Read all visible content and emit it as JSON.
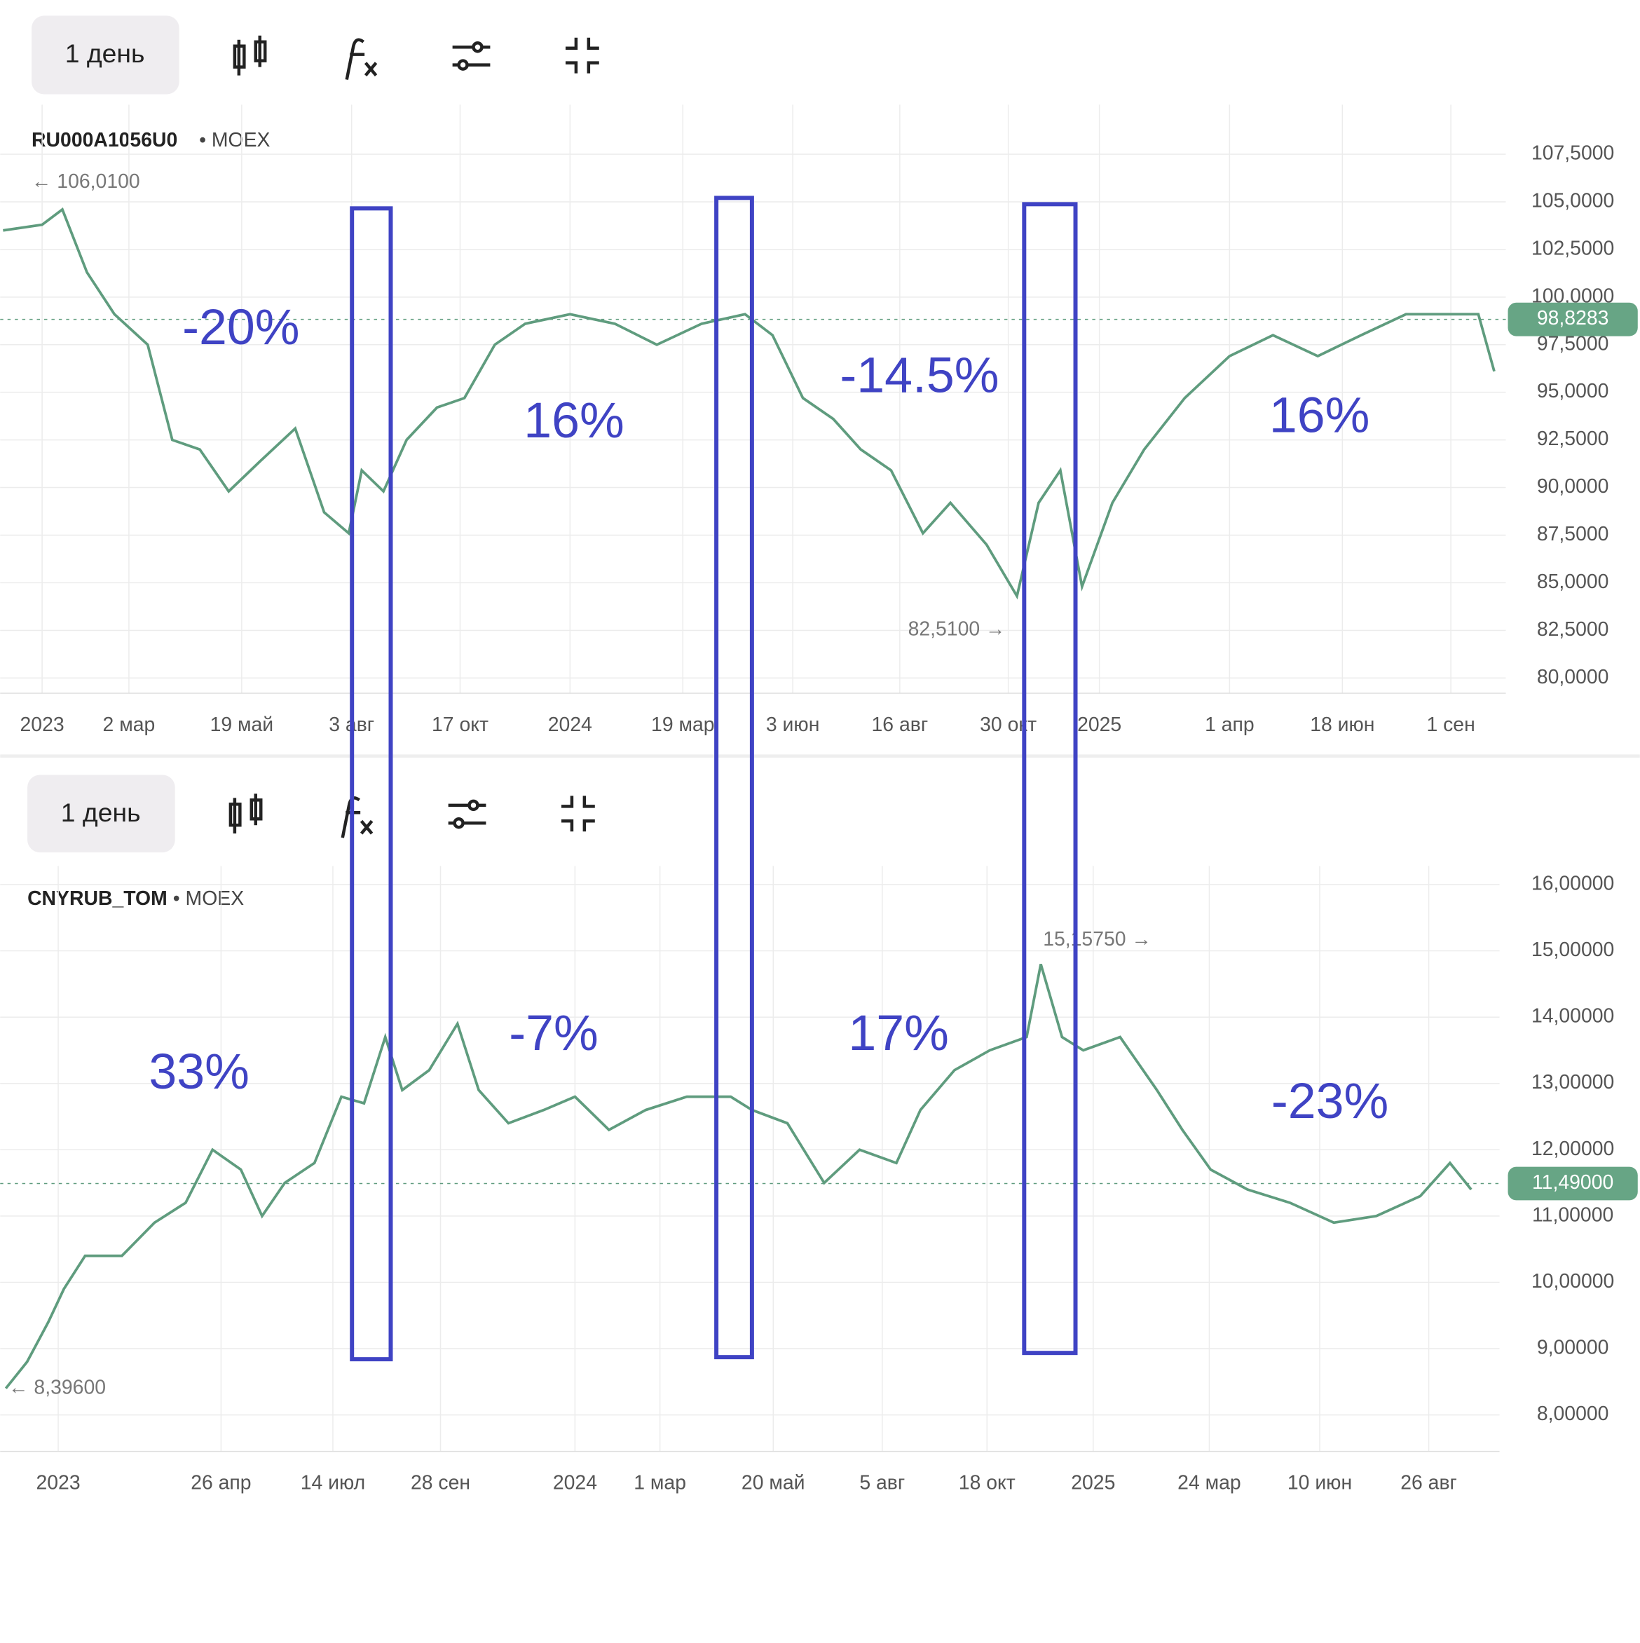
{
  "annotations": [
    "-20%",
    "16%",
    "-14.5%",
    "16%",
    "33%",
    "-7%",
    "17%",
    "-23%"
  ],
  "chart_data": [
    {
      "type": "line",
      "interval": "1 день",
      "ticker": "RU000A1056U0",
      "exchange": "• MOEX",
      "color": "#5f9c7e",
      "x": [
        "2022-12-05",
        "2023-01-01",
        "2023-01-15",
        "2023-02-01",
        "2023-02-20",
        "2023-03-15",
        "2023-04-01",
        "2023-04-20",
        "2023-05-10",
        "2023-06-01",
        "2023-06-25",
        "2023-07-15",
        "2023-08-01",
        "2023-08-10",
        "2023-08-25",
        "2023-09-10",
        "2023-10-01",
        "2023-10-20",
        "2023-11-10",
        "2023-12-01",
        "2024-01-01",
        "2024-02-01",
        "2024-03-01",
        "2024-04-01",
        "2024-05-01",
        "2024-05-20",
        "2024-06-10",
        "2024-07-01",
        "2024-07-20",
        "2024-08-10",
        "2024-09-01",
        "2024-09-20",
        "2024-10-15",
        "2024-11-05",
        "2024-11-20",
        "2024-12-05",
        "2024-12-20",
        "2025-01-10",
        "2025-02-01",
        "2025-03-01",
        "2025-04-01",
        "2025-05-01",
        "2025-06-01",
        "2025-07-01",
        "2025-08-01",
        "2025-09-01",
        "2025-09-20",
        "2025-10-01"
      ],
      "values": [
        103.5,
        103.8,
        104.6,
        101.3,
        99.1,
        97.5,
        92.5,
        92,
        89.8,
        91.4,
        93.1,
        88.7,
        87.6,
        90.9,
        89.8,
        92.5,
        94.2,
        94.7,
        97.5,
        98.6,
        99.1,
        98.6,
        97.5,
        98.6,
        99.1,
        98,
        94.7,
        93.6,
        92,
        90.9,
        87.6,
        89.2,
        87,
        84.3,
        89.2,
        90.9,
        84.8,
        89.2,
        92,
        94.7,
        96.9,
        98,
        96.9,
        98,
        99.1,
        99.1,
        99.1,
        96.1
      ],
      "xlim": [
        "2022-12-03",
        "2025-10-09"
      ],
      "xticks": [
        {
          "value": "2023-01-01",
          "label": "2023"
        },
        {
          "value": "2023-03-02",
          "label": "2 мар"
        },
        {
          "value": "2023-05-19",
          "label": "19 май"
        },
        {
          "value": "2023-08-03",
          "label": "3 авг"
        },
        {
          "value": "2023-10-17",
          "label": "17 окт"
        },
        {
          "value": "2024-01-01",
          "label": "2024"
        },
        {
          "value": "2024-03-19",
          "label": "19 мар"
        },
        {
          "value": "2024-06-03",
          "label": "3 июн"
        },
        {
          "value": "2024-08-16",
          "label": "16 авг"
        },
        {
          "value": "2024-10-30",
          "label": "30 окт"
        },
        {
          "value": "2025-01-01",
          "label": "2025"
        },
        {
          "value": "2025-04-01",
          "label": "1 апр"
        },
        {
          "value": "2025-06-18",
          "label": "18 июн"
        },
        {
          "value": "2025-09-01",
          "label": "1 сен"
        }
      ],
      "ylim": [
        79.2,
        110.1
      ],
      "yticks": [
        {
          "value": 80,
          "label": "80,0000"
        },
        {
          "value": 82.5,
          "label": "82,5000"
        },
        {
          "value": 85,
          "label": "85,0000"
        },
        {
          "value": 87.5,
          "label": "87,5000"
        },
        {
          "value": 90,
          "label": "90,0000"
        },
        {
          "value": 92.5,
          "label": "92,5000"
        },
        {
          "value": 95,
          "label": "95,0000"
        },
        {
          "value": 97.5,
          "label": "97,5000"
        },
        {
          "value": 100,
          "label": "100,0000"
        },
        {
          "value": 102.5,
          "label": "102,5000"
        },
        {
          "value": 105,
          "label": "105,0000"
        },
        {
          "value": 107.5,
          "label": "107,5000"
        }
      ],
      "grid": true,
      "last": {
        "value": 98.8283,
        "label": "98,8283"
      },
      "high": {
        "value": 106.01,
        "label": "← 106,0100"
      },
      "low": {
        "value": 82.51,
        "label": "82,5100 →"
      }
    },
    {
      "type": "line",
      "interval": "1 день",
      "ticker": "CNYRUB_TOM",
      "exchange": "• MOEX",
      "color": "#5f9c7e",
      "x": [
        "2022-11-25",
        "2022-12-10",
        "2022-12-25",
        "2023-01-05",
        "2023-01-20",
        "2023-02-15",
        "2023-03-10",
        "2023-04-01",
        "2023-04-20",
        "2023-05-10",
        "2023-05-25",
        "2023-06-10",
        "2023-07-01",
        "2023-07-20",
        "2023-08-05",
        "2023-08-20",
        "2023-09-01",
        "2023-09-20",
        "2023-10-10",
        "2023-10-25",
        "2023-11-15",
        "2023-12-10",
        "2024-01-01",
        "2024-01-25",
        "2024-02-20",
        "2024-03-20",
        "2024-04-20",
        "2024-05-05",
        "2024-05-30",
        "2024-06-25",
        "2024-07-20",
        "2024-08-15",
        "2024-09-01",
        "2024-09-25",
        "2024-10-20",
        "2024-11-15",
        "2024-11-25",
        "2024-12-10",
        "2024-12-25",
        "2025-01-20",
        "2025-02-15",
        "2025-03-05",
        "2025-03-25",
        "2025-04-20",
        "2025-05-20",
        "2025-06-20",
        "2025-07-20",
        "2025-08-20",
        "2025-09-10",
        "2025-09-25"
      ],
      "values": [
        8.4,
        8.8,
        9.4,
        9.9,
        10.4,
        10.4,
        10.9,
        11.2,
        12,
        11.7,
        11,
        11.5,
        11.8,
        12.8,
        12.7,
        13.7,
        12.9,
        13.2,
        13.9,
        12.9,
        12.4,
        12.6,
        12.8,
        12.3,
        12.6,
        12.8,
        12.8,
        12.6,
        12.4,
        11.5,
        12,
        11.8,
        12.6,
        13.2,
        13.5,
        13.7,
        14.8,
        13.7,
        13.5,
        13.7,
        12.9,
        12.3,
        11.7,
        11.4,
        11.2,
        10.9,
        11,
        11.3,
        11.8,
        11.4
      ],
      "xlim": [
        "2022-11-21",
        "2025-10-15"
      ],
      "xticks": [
        {
          "value": "2023-01-01",
          "label": "2023"
        },
        {
          "value": "2023-04-26",
          "label": "26 апр"
        },
        {
          "value": "2023-07-14",
          "label": "14 июл"
        },
        {
          "value": "2023-09-28",
          "label": "28 сен"
        },
        {
          "value": "2024-01-01",
          "label": "2024"
        },
        {
          "value": "2024-03-01",
          "label": "1 мар"
        },
        {
          "value": "2024-05-20",
          "label": "20 май"
        },
        {
          "value": "2024-08-05",
          "label": "5 авг"
        },
        {
          "value": "2024-10-18",
          "label": "18 окт"
        },
        {
          "value": "2025-01-01",
          "label": "2025"
        },
        {
          "value": "2025-03-24",
          "label": "24 мар"
        },
        {
          "value": "2025-06-10",
          "label": "10 июн"
        },
        {
          "value": "2025-08-26",
          "label": "26 авг"
        }
      ],
      "ylim": [
        7.45,
        16.28
      ],
      "yticks": [
        {
          "value": 8,
          "label": "8,00000"
        },
        {
          "value": 9,
          "label": "9,00000"
        },
        {
          "value": 10,
          "label": "10,00000"
        },
        {
          "value": 11,
          "label": "11,00000"
        },
        {
          "value": 12,
          "label": "12,00000"
        },
        {
          "value": 13,
          "label": "13,00000"
        },
        {
          "value": 14,
          "label": "14,00000"
        },
        {
          "value": 15,
          "label": "15,00000"
        },
        {
          "value": 16,
          "label": "16,00000"
        }
      ],
      "grid": true,
      "last": {
        "value": 11.49,
        "label": "11,49000"
      },
      "high": {
        "value": 15.1575,
        "label": "15,15750 →"
      },
      "low": {
        "value": 8.396,
        "label": "← 8,39600"
      }
    }
  ]
}
